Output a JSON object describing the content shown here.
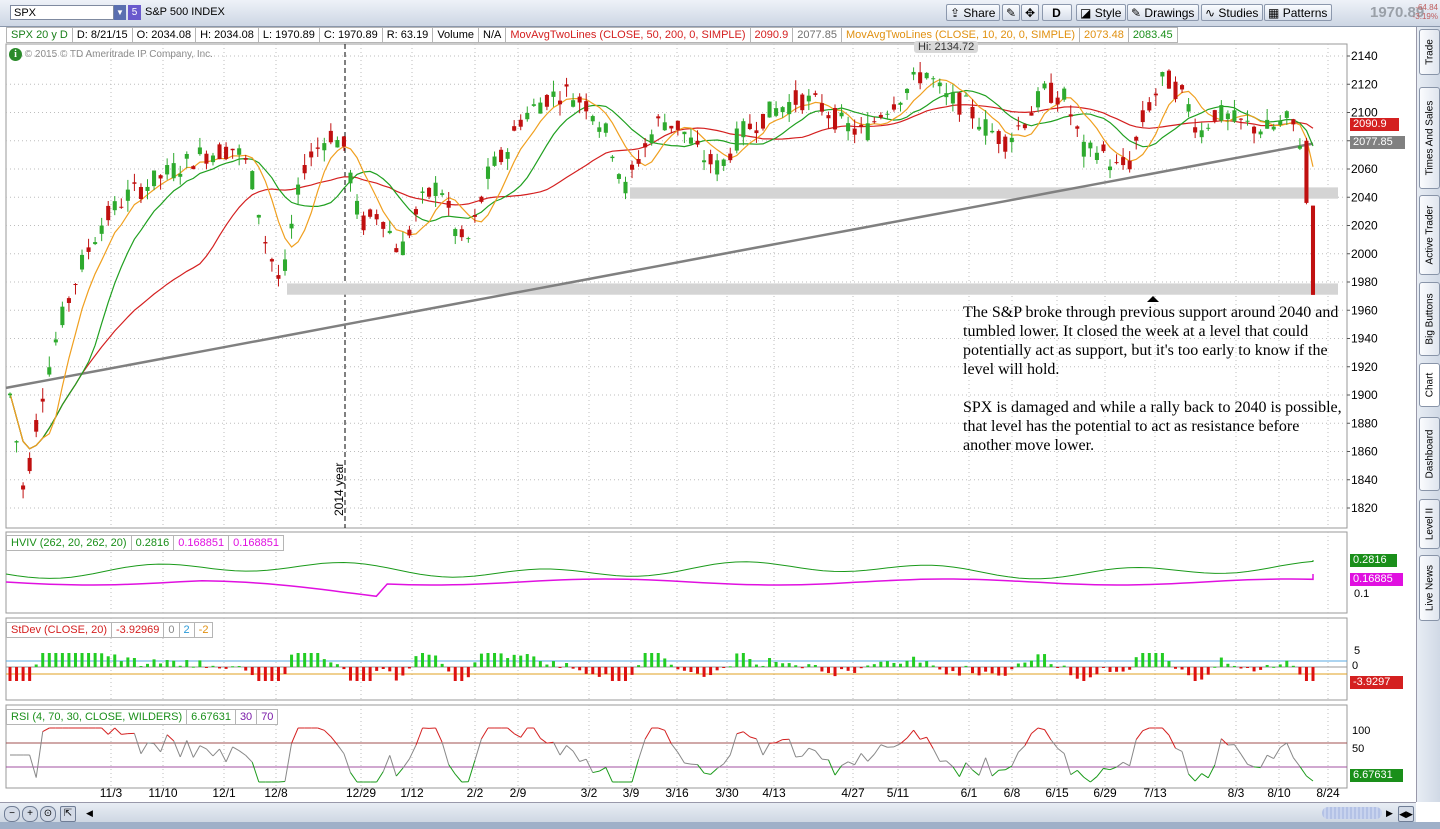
{
  "toolbar": {
    "symbol": "SPX",
    "flag": "5",
    "description": "S&P 500 INDEX",
    "share_label": "Share",
    "d_label": "D",
    "style_label": "Style",
    "drawings_label": "Drawings",
    "studies_label": "Studies",
    "patterns_label": "Patterns",
    "last_price": "1970.89",
    "change": "-64.84",
    "change_pct": "-3.19%"
  },
  "header": {
    "chart_id": "SPX 20 y D",
    "date": "D: 8/21/15",
    "open": "O: 2034.08",
    "high": "H: 2034.08",
    "low": "L: 1970.89",
    "close": "C: 1970.89",
    "range": "R: 63.19",
    "volume_label": "Volume",
    "volume_value": "N/A",
    "ma1_label": "MovAvgTwoLines (CLOSE, 50, 200, 0, SIMPLE)",
    "ma1_v1": "2090.9",
    "ma1_v2": "2077.85",
    "ma2_label": "MovAvgTwoLines (CLOSE, 10, 20, 0, SIMPLE)",
    "ma2_v1": "2073.48",
    "ma2_v2": "2083.45"
  },
  "copyright": "© 2015 © TD Ameritrade IP Company, Inc.",
  "hi_label": "Hi: 2134.72",
  "year_marker": "2014 year",
  "annotation": {
    "para1": "The S&P broke through previous support around 2040 and tumbled lower.  It closed the week at a level that could potentially act as support, but it's too early to know if the level will hold.",
    "para2": "SPX is damaged and while a rally back to 2040 is possible, that level has the potential to act as resistance before another move lower."
  },
  "price_badges": {
    "ma50": "2090.9",
    "ma200": "2077.85"
  },
  "hviv": {
    "label": "HVIV (262, 20, 262, 20)",
    "v1": "0.2816",
    "v2": "0.168851",
    "v3": "0.168851",
    "badge1": "0.2816",
    "badge2": "0.16885",
    "tick": "0.1"
  },
  "stdev": {
    "label": "StDev (CLOSE, 20)",
    "value": "-3.92969",
    "l1": "0",
    "l2": "2",
    "l3": "-2",
    "badge": "-3.9297",
    "tick_top": "5",
    "tick_mid": "0"
  },
  "rsi": {
    "label": "RSI (4, 70, 30, CLOSE, WILDERS)",
    "value": "6.67631",
    "l1": "30",
    "l2": "70",
    "badge": "6.67631",
    "tick_top": "100",
    "tick_mid": "50"
  },
  "sidebar": [
    "Trade",
    "Times And Sales",
    "Active Trader",
    "Big Buttons",
    "Chart",
    "Dashboard",
    "Level II",
    "Live News"
  ],
  "colors": {
    "up": "#2eaa2e",
    "down": "#c01010",
    "ma50": "#d42020",
    "ma200": "#808080",
    "ma10": "#f0a020",
    "ma20": "#20a020",
    "support": "#d4d4d4"
  },
  "chart_data": {
    "type": "candlestick",
    "y_ticks": [
      2140,
      2120,
      2100,
      2080,
      2060,
      2040,
      2020,
      2000,
      1980,
      1960,
      1940,
      1920,
      1900,
      1880,
      1860,
      1840,
      1820
    ],
    "ylim": [
      1810,
      2148
    ],
    "x_ticks": [
      "11/3",
      "11/10",
      "12/1",
      "12/8",
      "12/29",
      "1/12",
      "2/2",
      "2/9",
      "3/2",
      "3/9",
      "3/16",
      "3/30",
      "4/13",
      "4/27",
      "5/11",
      "6/1",
      "6/8",
      "6/15",
      "6/29",
      "7/13",
      "8/3",
      "8/10",
      "8/24"
    ],
    "support_levels": [
      2040,
      1975
    ],
    "high_annotation": 2134.72,
    "last_close": 1970.89
  }
}
